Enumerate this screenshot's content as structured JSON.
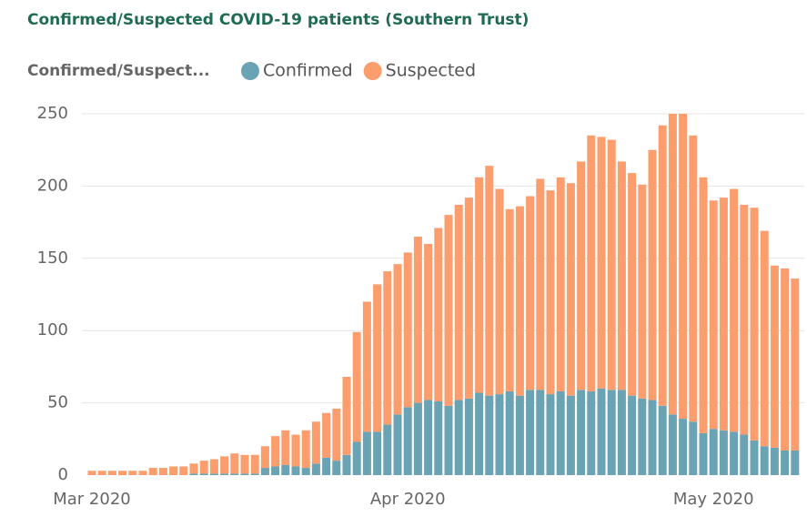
{
  "chart_data": {
    "type": "stacked_bar",
    "title": "Confirmed/Suspected COVID-19 patients (Southern Trust)",
    "legend_title": "Confirmed/Suspect...",
    "categories": [
      "Mar 2020",
      null,
      null,
      null,
      null,
      null,
      null,
      null,
      null,
      null,
      null,
      null,
      null,
      null,
      null,
      null,
      null,
      null,
      null,
      null,
      null,
      null,
      null,
      null,
      null,
      null,
      null,
      null,
      null,
      null,
      null,
      "Apr 2020",
      null,
      null,
      null,
      null,
      null,
      null,
      null,
      null,
      null,
      null,
      null,
      null,
      null,
      null,
      null,
      null,
      null,
      null,
      null,
      null,
      null,
      null,
      null,
      null,
      null,
      null,
      null,
      null,
      null,
      "May 2020",
      null,
      null,
      null,
      null,
      null,
      null,
      null,
      null
    ],
    "series": [
      {
        "name": "Confirmed",
        "color": "#6aa3b4",
        "values": [
          0,
          0,
          0,
          0,
          0,
          0,
          0,
          0,
          0,
          0,
          1,
          1,
          1,
          1,
          1,
          1,
          1,
          5,
          6,
          7,
          6,
          5,
          8,
          12,
          10,
          14,
          23,
          30,
          30,
          35,
          42,
          47,
          50,
          52,
          51,
          48,
          52,
          53,
          57,
          55,
          56,
          58,
          55,
          59,
          59,
          56,
          58,
          55,
          59,
          58,
          60,
          59,
          59,
          55,
          53,
          52,
          48,
          42,
          39,
          37,
          29,
          32,
          31,
          30,
          28,
          24,
          20,
          19,
          17,
          17
        ]
      },
      {
        "name": "Suspected",
        "color": "#fb9d6c",
        "values": [
          3,
          3,
          3,
          3,
          3,
          3,
          5,
          5,
          6,
          6,
          7,
          9,
          10,
          12,
          14,
          13,
          13,
          15,
          21,
          24,
          22,
          26,
          29,
          31,
          36,
          54,
          76,
          90,
          102,
          106,
          104,
          107,
          115,
          108,
          120,
          132,
          135,
          139,
          149,
          159,
          142,
          126,
          131,
          134,
          146,
          141,
          148,
          147,
          158,
          177,
          174,
          173,
          158,
          154,
          148,
          173,
          194,
          208,
          211,
          198,
          177,
          158,
          161,
          168,
          159,
          161,
          149,
          126,
          126,
          119
        ]
      }
    ],
    "ylim": [
      0,
      250
    ],
    "yticks": [
      0,
      50,
      100,
      150,
      200,
      250
    ],
    "grid": true
  }
}
